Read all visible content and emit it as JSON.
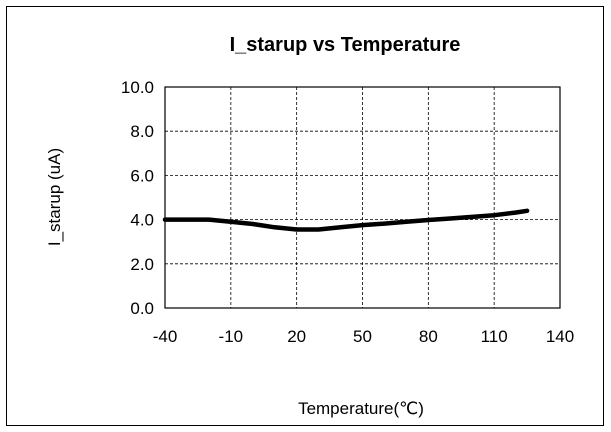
{
  "chart_data": {
    "type": "line",
    "title": "I_starup vs Temperature",
    "xlabel": "Temperature(℃)",
    "ylabel": "I_starup  (uA)",
    "xlim": [
      -40,
      140
    ],
    "ylim": [
      0,
      10
    ],
    "x_ticks": [
      "-40",
      "-10",
      "20",
      "50",
      "80",
      "110",
      "140"
    ],
    "y_ticks": [
      "0.0",
      "2.0",
      "4.0",
      "6.0",
      "8.0",
      "10.0"
    ],
    "grid": true,
    "legend": "none",
    "series": [
      {
        "color": "#000000",
        "x": [
          -40,
          -20,
          -10,
          0,
          10,
          20,
          30,
          40,
          50,
          60,
          70,
          80,
          90,
          100,
          110,
          120,
          125
        ],
        "y": [
          4.0,
          4.0,
          3.9,
          3.8,
          3.65,
          3.55,
          3.55,
          3.65,
          3.75,
          3.82,
          3.9,
          3.98,
          4.05,
          4.12,
          4.2,
          4.32,
          4.4
        ]
      }
    ]
  }
}
